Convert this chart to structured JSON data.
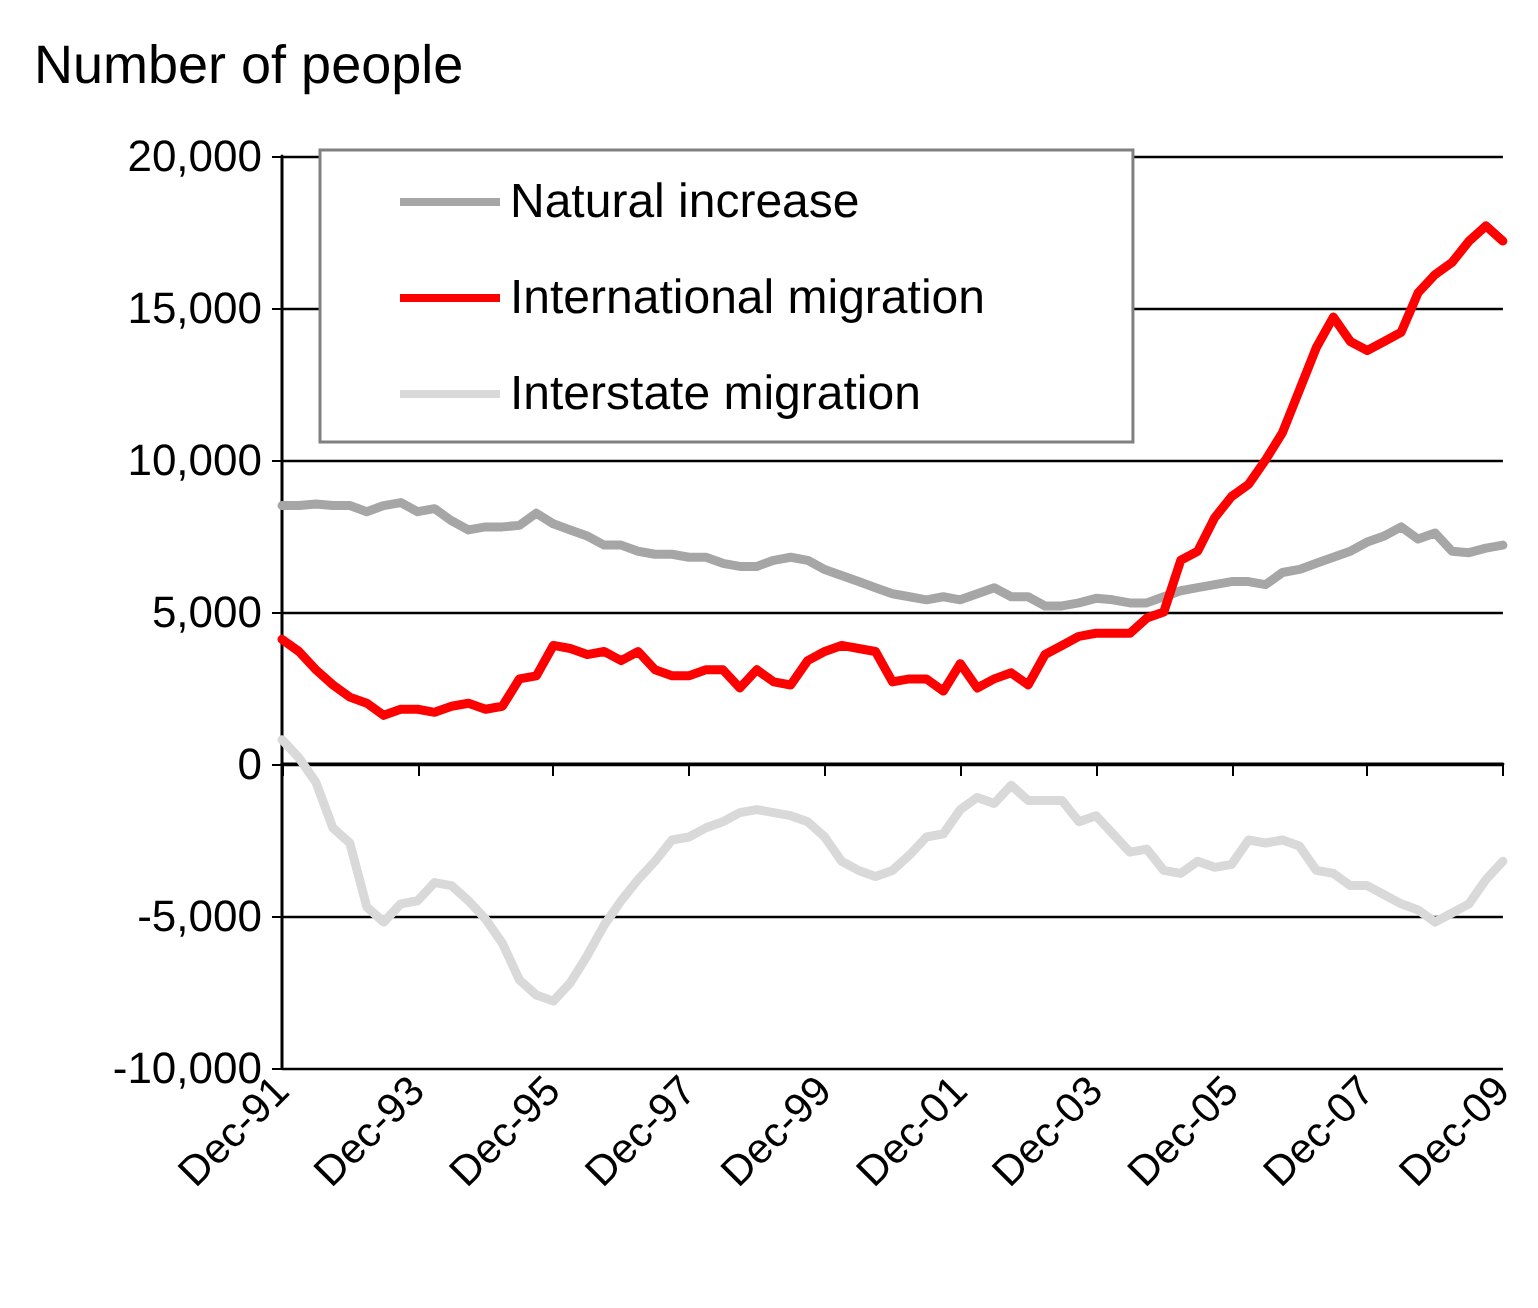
{
  "chart_data": {
    "type": "line",
    "ylabel": "Number of people",
    "categories": [
      "Dec-91",
      null,
      null,
      null,
      null,
      null,
      null,
      null,
      "Dec-93",
      null,
      null,
      null,
      null,
      null,
      null,
      null,
      "Dec-95",
      null,
      null,
      null,
      null,
      null,
      null,
      null,
      "Dec-97",
      null,
      null,
      null,
      null,
      null,
      null,
      null,
      "Dec-99",
      null,
      null,
      null,
      null,
      null,
      null,
      null,
      "Dec-01",
      null,
      null,
      null,
      null,
      null,
      null,
      null,
      "Dec-03",
      null,
      null,
      null,
      null,
      null,
      null,
      null,
      "Dec-05",
      null,
      null,
      null,
      null,
      null,
      null,
      null,
      "Dec-07",
      null,
      null,
      null,
      null,
      null,
      null,
      null,
      "Dec-09"
    ],
    "series": [
      {
        "name": "Natural increase",
        "color": "#a6a6a6",
        "values": [
          8500,
          8500,
          8550,
          8500,
          8500,
          8300,
          8500,
          8600,
          8300,
          8400,
          8000,
          7700,
          7800,
          7800,
          7850,
          8250,
          7900,
          7700,
          7500,
          7200,
          7200,
          7000,
          6900,
          6900,
          6800,
          6800,
          6600,
          6500,
          6500,
          6700,
          6800,
          6700,
          6400,
          6200,
          6000,
          5800,
          5600,
          5500,
          5400,
          5500,
          5400,
          5600,
          5800,
          5500,
          5500,
          5200,
          5200,
          5300,
          5450,
          5400,
          5300,
          5300,
          5500,
          5700,
          5800,
          5900,
          6000,
          6000,
          5900,
          6300,
          6400,
          6600,
          6800,
          7000,
          7300,
          7500,
          7800,
          7400,
          7600,
          7000,
          6950,
          7100,
          7200
        ]
      },
      {
        "name": "International migration",
        "color": "#ff0000",
        "values": [
          4100,
          3700,
          3100,
          2600,
          2200,
          2000,
          1600,
          1800,
          1800,
          1700,
          1900,
          2000,
          1800,
          1900,
          2800,
          2900,
          3900,
          3800,
          3600,
          3700,
          3400,
          3700,
          3100,
          2900,
          2900,
          3100,
          3100,
          2500,
          3100,
          2700,
          2600,
          3400,
          3700,
          3900,
          3800,
          3700,
          2700,
          2800,
          2800,
          2400,
          3300,
          2500,
          2800,
          3000,
          2600,
          3600,
          3900,
          4200,
          4300,
          4300,
          4300,
          4800,
          5000,
          6700,
          7000,
          8100,
          8800,
          9200,
          10000,
          10900,
          12300,
          13700,
          14700,
          13900,
          13600,
          13900,
          14200,
          15500,
          16100,
          16500,
          17200,
          17700,
          17200
        ]
      },
      {
        "name": "Interstate migration",
        "color": "#d9d9d9",
        "values": [
          800,
          200,
          -600,
          -2100,
          -2600,
          -4700,
          -5200,
          -4600,
          -4500,
          -3900,
          -4000,
          -4500,
          -5100,
          -5900,
          -7100,
          -7600,
          -7800,
          -7200,
          -6300,
          -5300,
          -4500,
          -3800,
          -3200,
          -2500,
          -2400,
          -2100,
          -1900,
          -1600,
          -1500,
          -1600,
          -1700,
          -1900,
          -2400,
          -3200,
          -3500,
          -3700,
          -3500,
          -3000,
          -2400,
          -2300,
          -1500,
          -1100,
          -1300,
          -700,
          -1200,
          -1200,
          -1200,
          -1900,
          -1700,
          -2300,
          -2900,
          -2800,
          -3500,
          -3600,
          -3200,
          -3400,
          -3300,
          -2500,
          -2600,
          -2500,
          -2700,
          -3500,
          -3600,
          -4000,
          -4000,
          -4300,
          -4600,
          -4800,
          -5200,
          -4900,
          -4600,
          -3800,
          -3200
        ]
      }
    ],
    "ylim": [
      -10000,
      20000
    ],
    "yticks": [
      {
        "value": -10000,
        "label": "-10,000"
      },
      {
        "value": -5000,
        "label": "-5,000"
      },
      {
        "value": 0,
        "label": "0"
      },
      {
        "value": 5000,
        "label": "5,000"
      },
      {
        "value": 10000,
        "label": "10,000"
      },
      {
        "value": 15000,
        "label": "15,000"
      },
      {
        "value": 20000,
        "label": "20,000"
      }
    ],
    "grid": "y",
    "legend": "top left",
    "marker": "none",
    "line_style": "solid"
  }
}
